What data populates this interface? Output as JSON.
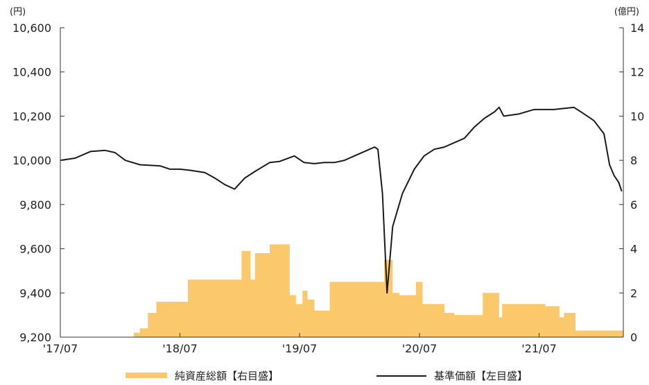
{
  "chart_data": {
    "type": "bar+line",
    "left_axis": {
      "unit": "(円)",
      "min": 9200,
      "max": 10600,
      "ticks": [
        "9,200",
        "9,400",
        "9,600",
        "9,800",
        "10,000",
        "10,200",
        "10,400",
        "10,600"
      ]
    },
    "right_axis": {
      "unit": "(億円)",
      "min": 0,
      "max": 14,
      "ticks": [
        "0",
        "2",
        "4",
        "6",
        "8",
        "10",
        "12",
        "14"
      ]
    },
    "x_axis": {
      "start": "2017-07",
      "end": "2022-03",
      "tick_dates": [
        "2017-07",
        "2018-07",
        "2019-07",
        "2020-07",
        "2021-07"
      ],
      "ticks": [
        "'17/07",
        "'18/07",
        "'19/07",
        "'20/07",
        "'21/07"
      ]
    },
    "legend": [
      "純資産総額【右目盛】",
      "基準価額【左目盛】"
    ],
    "colors": {
      "bar": "#fbc96b",
      "line": "#1a1a1a",
      "axis": "#333333"
    },
    "series": [
      {
        "name": "純資産総額【右目盛】",
        "axis": "right",
        "kind": "area-step",
        "points": [
          [
            "2018-02-10",
            0.2
          ],
          [
            "2018-03-01",
            0.4
          ],
          [
            "2018-03-25",
            1.1
          ],
          [
            "2018-04-20",
            1.6
          ],
          [
            "2018-07-20",
            1.6
          ],
          [
            "2018-07-25",
            2.6
          ],
          [
            "2018-12-10",
            2.6
          ],
          [
            "2019-01-05",
            3.9
          ],
          [
            "2019-02-01",
            2.6
          ],
          [
            "2019-02-15",
            3.8
          ],
          [
            "2019-04-01",
            4.2
          ],
          [
            "2019-06-01",
            1.9
          ],
          [
            "2019-06-20",
            1.5
          ],
          [
            "2019-07-10",
            2.1
          ],
          [
            "2019-07-25",
            1.7
          ],
          [
            "2019-08-15",
            1.2
          ],
          [
            "2019-10-01",
            2.5
          ],
          [
            "2020-03-01",
            2.5
          ],
          [
            "2020-03-15",
            3.5
          ],
          [
            "2020-04-10",
            2.0
          ],
          [
            "2020-05-01",
            1.9
          ],
          [
            "2020-06-20",
            2.5
          ],
          [
            "2020-07-10",
            1.5
          ],
          [
            "2020-09-15",
            1.1
          ],
          [
            "2020-10-15",
            1.0
          ],
          [
            "2021-01-10",
            2.0
          ],
          [
            "2021-03-01",
            0.9
          ],
          [
            "2021-03-10",
            1.5
          ],
          [
            "2021-04-01",
            1.5
          ],
          [
            "2021-07-20",
            1.4
          ],
          [
            "2021-09-01",
            0.9
          ],
          [
            "2021-09-15",
            1.1
          ],
          [
            "2021-10-20",
            0.3
          ],
          [
            "2022-03-01",
            0.3
          ]
        ]
      },
      {
        "name": "基準価額【左目盛】",
        "axis": "left",
        "kind": "line",
        "points": [
          [
            "2017-07-01",
            10000
          ],
          [
            "2017-08-15",
            10010
          ],
          [
            "2017-10-01",
            10040
          ],
          [
            "2017-11-15",
            10045
          ],
          [
            "2017-12-15",
            10035
          ],
          [
            "2018-01-15",
            10000
          ],
          [
            "2018-03-01",
            9980
          ],
          [
            "2018-05-01",
            9975
          ],
          [
            "2018-06-01",
            9960
          ],
          [
            "2018-07-01",
            9960
          ],
          [
            "2018-08-01",
            9955
          ],
          [
            "2018-09-15",
            9945
          ],
          [
            "2018-10-15",
            9920
          ],
          [
            "2018-11-15",
            9890
          ],
          [
            "2018-12-15",
            9870
          ],
          [
            "2019-01-15",
            9920
          ],
          [
            "2019-02-15",
            9950
          ],
          [
            "2019-04-01",
            9990
          ],
          [
            "2019-05-01",
            9995
          ],
          [
            "2019-06-15",
            10020
          ],
          [
            "2019-07-15",
            9990
          ],
          [
            "2019-08-15",
            9985
          ],
          [
            "2019-09-15",
            9990
          ],
          [
            "2019-10-15",
            9990
          ],
          [
            "2019-11-15",
            10000
          ],
          [
            "2019-12-15",
            10020
          ],
          [
            "2020-01-15",
            10040
          ],
          [
            "2020-02-15",
            10060
          ],
          [
            "2020-02-25",
            10050
          ],
          [
            "2020-03-10",
            9850
          ],
          [
            "2020-03-24",
            9400
          ],
          [
            "2020-04-10",
            9700
          ],
          [
            "2020-05-10",
            9850
          ],
          [
            "2020-06-15",
            9960
          ],
          [
            "2020-07-15",
            10020
          ],
          [
            "2020-08-15",
            10050
          ],
          [
            "2020-09-15",
            10060
          ],
          [
            "2020-10-15",
            10080
          ],
          [
            "2020-11-15",
            10100
          ],
          [
            "2020-12-15",
            10150
          ],
          [
            "2021-01-15",
            10190
          ],
          [
            "2021-02-15",
            10220
          ],
          [
            "2021-03-01",
            10240
          ],
          [
            "2021-03-15",
            10200
          ],
          [
            "2021-05-01",
            10210
          ],
          [
            "2021-06-15",
            10230
          ],
          [
            "2021-08-15",
            10230
          ],
          [
            "2021-10-15",
            10240
          ],
          [
            "2021-11-15",
            10210
          ],
          [
            "2021-12-15",
            10180
          ],
          [
            "2022-01-15",
            10120
          ],
          [
            "2022-02-01",
            9980
          ],
          [
            "2022-02-15",
            9930
          ],
          [
            "2022-03-01",
            9900
          ],
          [
            "2022-03-10",
            9860
          ]
        ]
      }
    ]
  }
}
